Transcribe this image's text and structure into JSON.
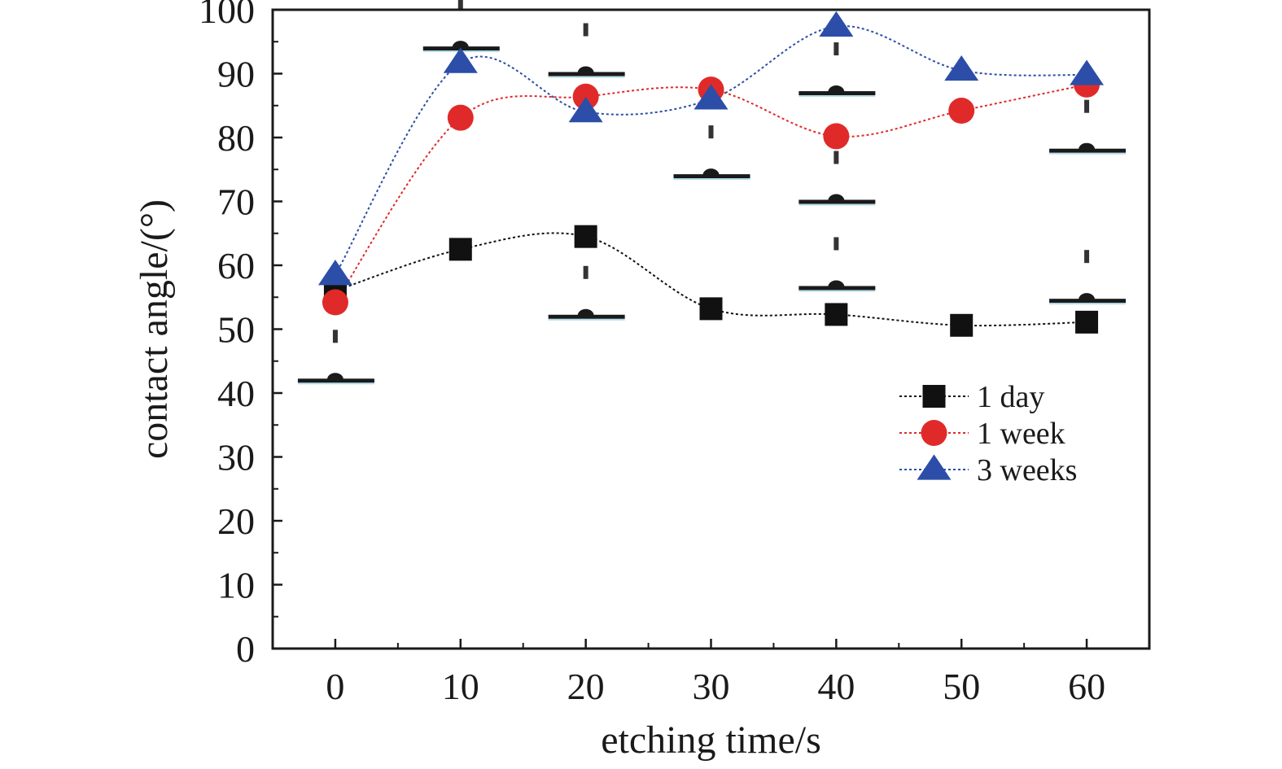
{
  "chart_data": {
    "type": "line",
    "xlabel": "etching time/s",
    "ylabel": "contact angle/(°)",
    "x": [
      0,
      10,
      20,
      30,
      40,
      50,
      60
    ],
    "xlim": [
      -5,
      65
    ],
    "ylim": [
      0,
      100
    ],
    "x_ticks": [
      "0",
      "10",
      "20",
      "30",
      "40",
      "50",
      "60"
    ],
    "y_ticks": [
      "0",
      "10",
      "20",
      "30",
      "40",
      "50",
      "60",
      "70",
      "80",
      "90",
      "100"
    ],
    "legend_position": "center-right",
    "grid": false,
    "line_style": "dotted, smooth spline",
    "series": [
      {
        "name": "1 day",
        "marker": "square",
        "color": "#111111",
        "values": [
          56,
          62.5,
          64.5,
          53.2,
          52.3,
          50.6,
          51.1
        ]
      },
      {
        "name": "1 week",
        "marker": "circle",
        "color": "#e02a2a",
        "values": [
          54.2,
          83.1,
          86.4,
          87.5,
          80.2,
          84.2,
          88.3
        ]
      },
      {
        "name": "3 weeks",
        "marker": "triangle",
        "color": "#2c4ea8",
        "values": [
          58.5,
          91.7,
          84,
          86,
          97.4,
          90.5,
          89.8
        ]
      }
    ],
    "droplet_images": [
      {
        "x": 0,
        "level": 42
      },
      {
        "x": 10,
        "level": 94
      },
      {
        "x": 20,
        "level": 52
      },
      {
        "x": 20,
        "level": 90
      },
      {
        "x": 30,
        "level": 74
      },
      {
        "x": 40,
        "level": 56.5
      },
      {
        "x": 40,
        "level": 70
      },
      {
        "x": 40,
        "level": 87
      },
      {
        "x": 60,
        "level": 54.5
      },
      {
        "x": 60,
        "level": 78
      }
    ]
  }
}
